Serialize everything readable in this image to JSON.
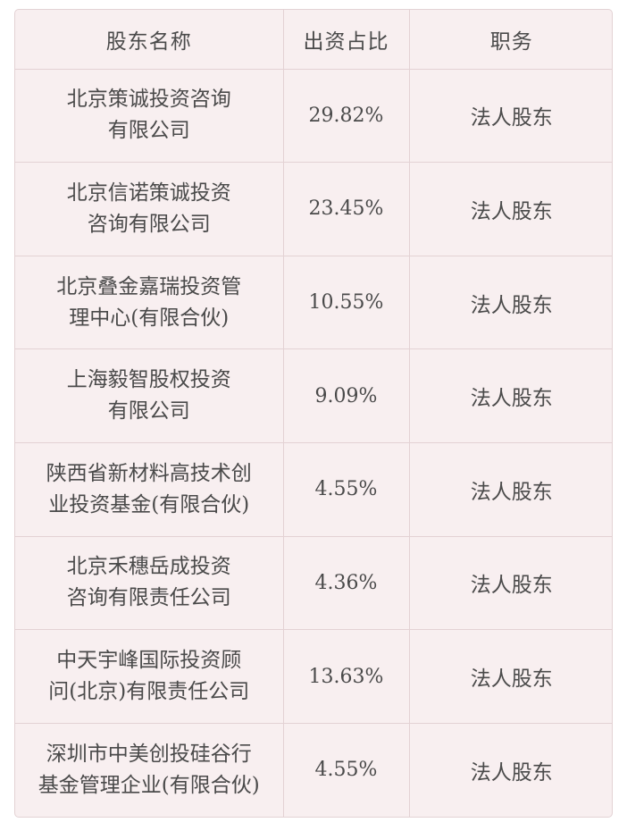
{
  "table": {
    "headers": [
      "股东名称",
      "出资占比",
      "职务"
    ],
    "rows": [
      {
        "name_lines": [
          "北京策诚投资咨询",
          "有限公司"
        ],
        "ratio": "29.82%",
        "role": "法人股东"
      },
      {
        "name_lines": [
          "北京信诺策诚投资",
          "咨询有限公司"
        ],
        "ratio": "23.45%",
        "role": "法人股东"
      },
      {
        "name_lines": [
          "北京叠金嘉瑞投资管",
          "理中心(有限合伙)"
        ],
        "ratio": "10.55%",
        "role": "法人股东"
      },
      {
        "name_lines": [
          "上海毅智股权投资",
          "有限公司"
        ],
        "ratio": "9.09%",
        "role": "法人股东"
      },
      {
        "name_lines": [
          "陕西省新材料高技术创",
          "业投资基金(有限合伙)"
        ],
        "ratio": "4.55%",
        "role": "法人股东"
      },
      {
        "name_lines": [
          "北京禾穗岳成投资",
          "咨询有限责任公司"
        ],
        "ratio": "4.36%",
        "role": "法人股东"
      },
      {
        "name_lines": [
          "中天宇峰国际投资顾",
          "问(北京)有限责任公司"
        ],
        "ratio": "13.63%",
        "role": "法人股东"
      },
      {
        "name_lines": [
          "深圳市中美创投硅谷行",
          "基金管理企业(有限合伙)"
        ],
        "ratio": "4.55%",
        "role": "法人股东"
      }
    ]
  }
}
